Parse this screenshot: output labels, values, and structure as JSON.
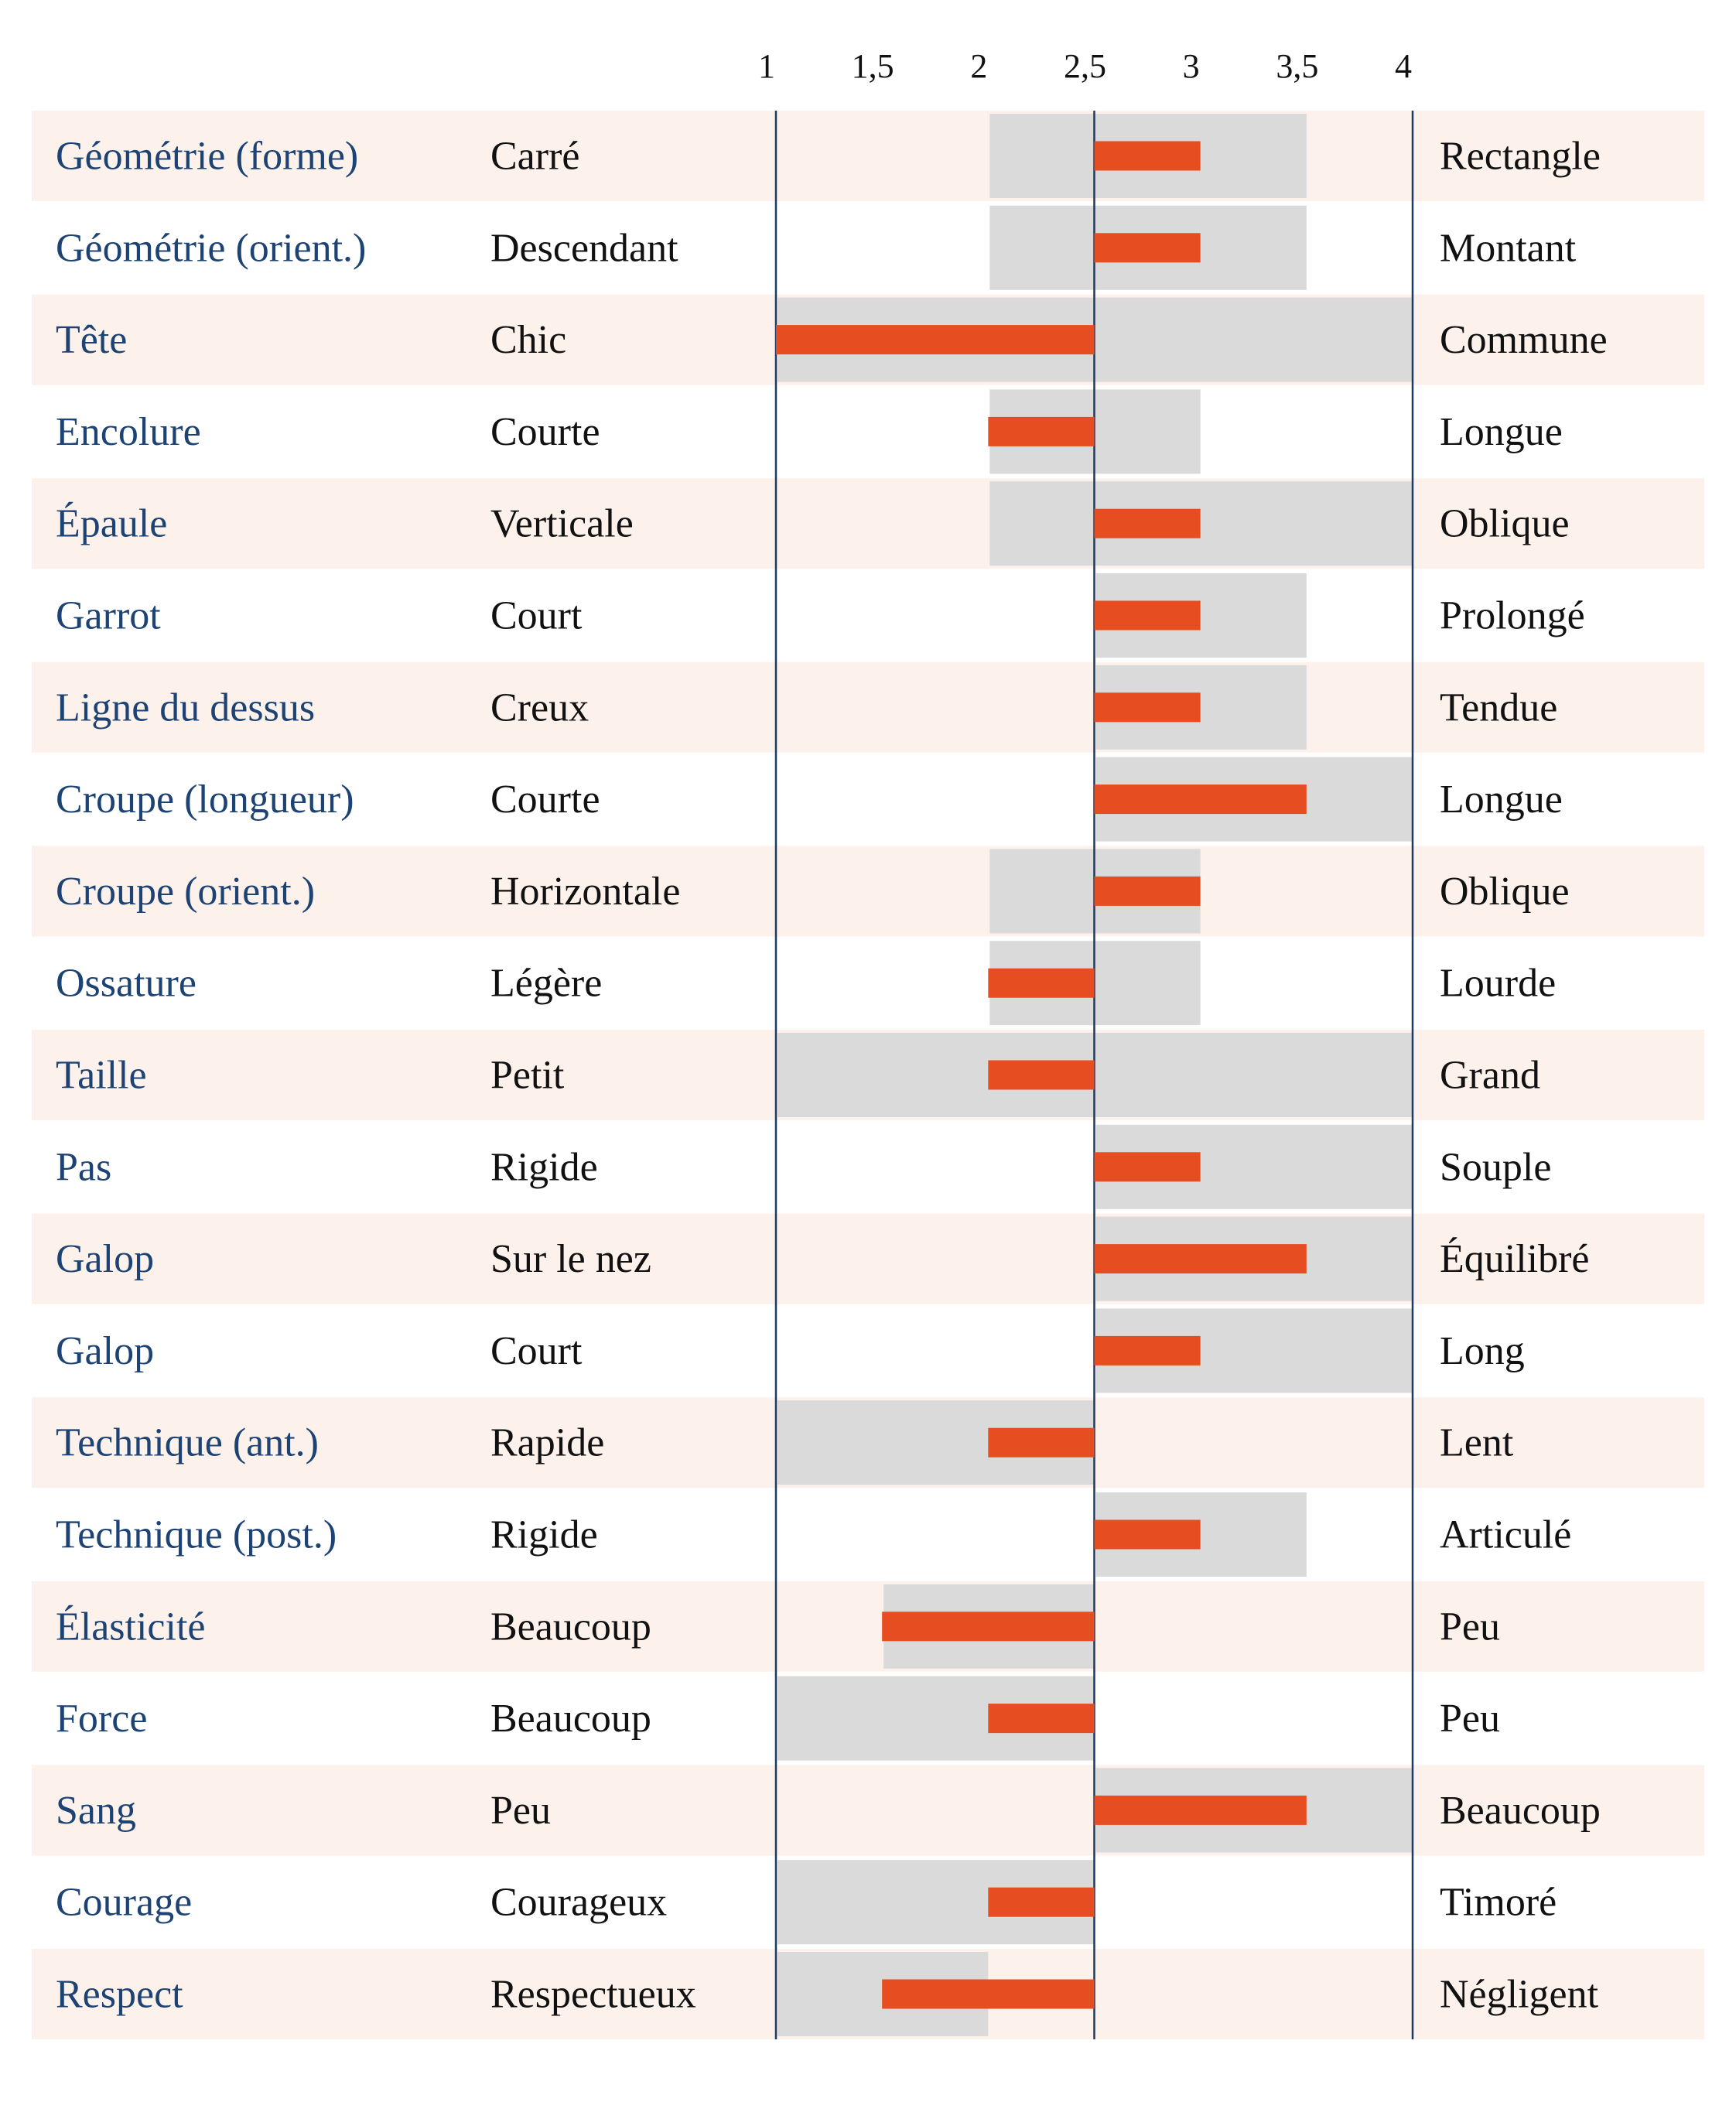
{
  "colors": {
    "criterion_text": "#1d4274",
    "label_text": "#111111",
    "row_tint": "#fdf1ec",
    "range_bar": "#dadada",
    "value_bar": "#e64e22",
    "axis_line": "#1d3a66"
  },
  "chart_data": {
    "type": "bar",
    "xlim": [
      1,
      4
    ],
    "ticks": [
      {
        "value": 1,
        "label": "1"
      },
      {
        "value": 1.5,
        "label": "1,5"
      },
      {
        "value": 2,
        "label": "2"
      },
      {
        "value": 2.5,
        "label": "2,5"
      },
      {
        "value": 3,
        "label": "3"
      },
      {
        "value": 3.5,
        "label": "3,5"
      },
      {
        "value": 4,
        "label": "4"
      }
    ],
    "baseline": 2.5,
    "reference_lines": [
      1,
      2.5,
      4
    ],
    "rows": [
      {
        "criterion": "Géométrie (forme)",
        "left": "Carré",
        "right": "Rectangle",
        "range": [
          2,
          3.5
        ],
        "value": 3
      },
      {
        "criterion": "Géométrie (orient.)",
        "left": "Descendant",
        "right": "Montant",
        "range": [
          2,
          3.5
        ],
        "value": 3
      },
      {
        "criterion": "Tête",
        "left": "Chic",
        "right": "Commune",
        "range": [
          1,
          4
        ],
        "value": 1
      },
      {
        "criterion": "Encolure",
        "left": "Courte",
        "right": "Longue",
        "range": [
          2,
          3
        ],
        "value": 2
      },
      {
        "criterion": "Épaule",
        "left": "Verticale",
        "right": "Oblique",
        "range": [
          2,
          4
        ],
        "value": 3
      },
      {
        "criterion": "Garrot",
        "left": "Court",
        "right": "Prolongé",
        "range": [
          2.5,
          3.5
        ],
        "value": 3
      },
      {
        "criterion": "Ligne du dessus",
        "left": "Creux",
        "right": "Tendue",
        "range": [
          2.5,
          3.5
        ],
        "value": 3
      },
      {
        "criterion": "Croupe (longueur)",
        "left": "Courte",
        "right": "Longue",
        "range": [
          2.5,
          4
        ],
        "value": 3.5
      },
      {
        "criterion": "Croupe (orient.)",
        "left": "Horizontale",
        "right": "Oblique",
        "range": [
          2,
          3
        ],
        "value": 3
      },
      {
        "criterion": "Ossature",
        "left": "Légère",
        "right": "Lourde",
        "range": [
          2,
          3
        ],
        "value": 2
      },
      {
        "criterion": "Taille",
        "left": "Petit",
        "right": "Grand",
        "range": [
          1,
          4
        ],
        "value": 2
      },
      {
        "criterion": "Pas",
        "left": "Rigide",
        "right": "Souple",
        "range": [
          2.5,
          4
        ],
        "value": 3
      },
      {
        "criterion": "Galop",
        "left": "Sur le nez",
        "right": "Équilibré",
        "range": [
          2.5,
          4
        ],
        "value": 3.5
      },
      {
        "criterion": "Galop",
        "left": "Court",
        "right": "Long",
        "range": [
          2.5,
          4
        ],
        "value": 3
      },
      {
        "criterion": "Technique (ant.)",
        "left": "Rapide",
        "right": "Lent",
        "range": [
          1,
          2.5
        ],
        "value": 2
      },
      {
        "criterion": "Technique (post.)",
        "left": "Rigide",
        "right": "Articulé",
        "range": [
          2.5,
          3.5
        ],
        "value": 3
      },
      {
        "criterion": "Élasticité",
        "left": "Beaucoup",
        "right": "Peu",
        "range": [
          1.5,
          2.5
        ],
        "value": 1.5
      },
      {
        "criterion": "Force",
        "left": "Beaucoup",
        "right": "Peu",
        "range": [
          1,
          2.5
        ],
        "value": 2
      },
      {
        "criterion": "Sang",
        "left": "Peu",
        "right": "Beaucoup",
        "range": [
          2.5,
          4
        ],
        "value": 3.5
      },
      {
        "criterion": "Courage",
        "left": "Courageux",
        "right": "Timoré",
        "range": [
          1,
          2.5
        ],
        "value": 2
      },
      {
        "criterion": "Respect",
        "left": "Respectueux",
        "right": "Négligent",
        "range": [
          1,
          2
        ],
        "value": 1.5
      }
    ]
  }
}
